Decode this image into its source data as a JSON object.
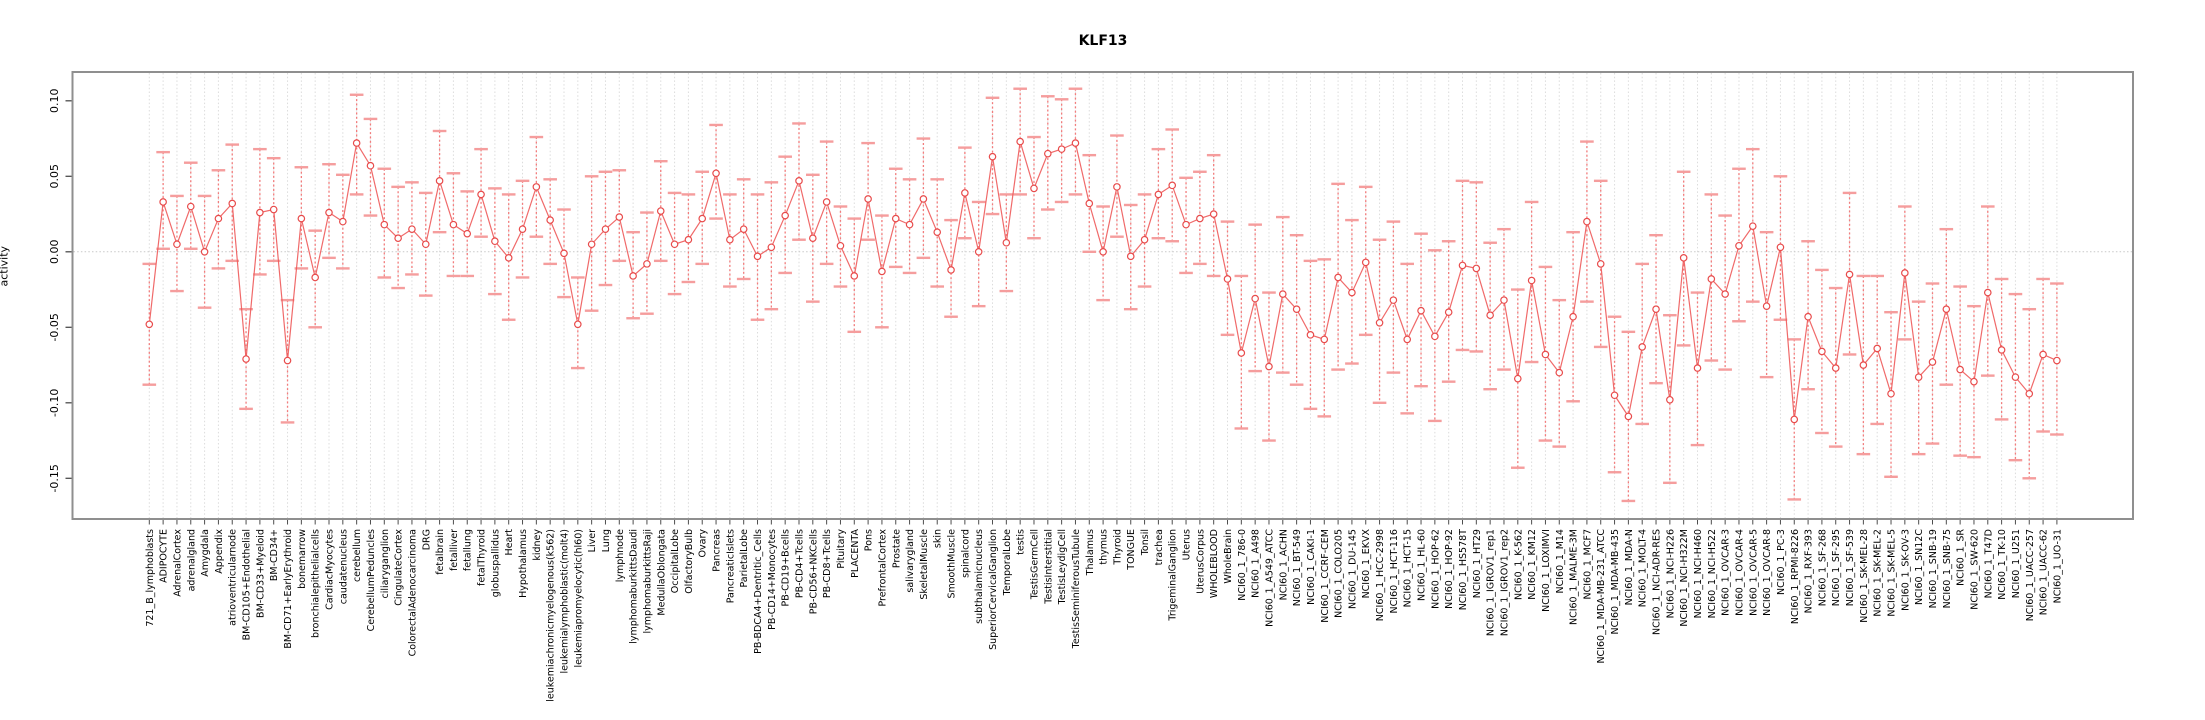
{
  "chart_data": {
    "type": "line",
    "variant": "points-with-error-bars",
    "title": "KLF13",
    "ylabel": "activity",
    "xlabel": "",
    "ylim": [
      -0.176,
      0.118
    ],
    "yticks": [
      0.1,
      0.05,
      0.0,
      -0.05,
      -0.1,
      -0.15
    ],
    "ytick_labels": [
      "0.10",
      "0.05",
      "0.00",
      "-0.05",
      "-0.10",
      "-0.15"
    ],
    "grid": {
      "vertical_per_category": true,
      "horizontal_zero_line": true,
      "style": "dotted-light-gray"
    },
    "legend_position": "none",
    "colors": {
      "series_line": "#ee5a5a",
      "point_ring": "#e84b4b",
      "error_stem": "#f37c7c",
      "error_cap": "#f59d9d",
      "gridline": "#dcdcdc",
      "zero_line": "#c9c9c9",
      "frame": "#8f8f8f",
      "tick": "#4d4d4d",
      "text": "#000000"
    },
    "categories": [
      "721_B_lymphoblasts",
      "ADIPOCYTE",
      "AdrenalCortex",
      "adrenalgland",
      "Amygdala",
      "Appendix",
      "atrioventricularnode",
      "BM-CD105+Endothelial",
      "BM-CD33+Myeloid",
      "BM-CD34+",
      "BM-CD71+EarlyErythroid",
      "bonemarrow",
      "bronchialepithelialcells",
      "CardiacMyocytes",
      "caudatenucleus",
      "cerebellum",
      "CerebellumPeduncles",
      "ciliaryganglion",
      "CingulateCortex",
      "ColorectalAdenocarcinoma",
      "DRG",
      "fetalbrain",
      "fetalliver",
      "fetallung",
      "fetalThyroid",
      "globuspallidus",
      "Heart",
      "Hypothalamus",
      "kidney",
      "leukemiachronicmyelogenous(k562)",
      "leukemialymphoblastic(molt4)",
      "leukemiapromyelocytic(hl60)",
      "Liver",
      "Lung",
      "lymphnode",
      "lymphomaburkittsDaudi",
      "lymphomaburkittsRaji",
      "MedullaOblongata",
      "OccipitalLobe",
      "OlfactoryBulb",
      "Ovary",
      "Pancreas",
      "PancreaticIslets",
      "ParietalLobe",
      "PB-BDCA4+Dentritic_Cells",
      "PB-CD14+Monocytes",
      "PB-CD19+Bcells",
      "PB-CD4+Tcells",
      "PB-CD56+NKCells",
      "PB-CD8+Tcells",
      "Pituitary",
      "PLACENTA",
      "Pons",
      "PrefrontalCortex",
      "Prostate",
      "salivarygland",
      "SkeletalMuscle",
      "skin",
      "SmoothMuscle",
      "spinalcord",
      "subthalamicnucleus",
      "SuperiorCervicalGanglion",
      "TemporalLobe",
      "testis",
      "TestisGermCell",
      "TestisInterstitial",
      "TestisLeydigCell",
      "TestisSeminiferousTubule",
      "Thalamus",
      "thymus",
      "Thyroid",
      "TONGUE",
      "Tonsil",
      "trachea",
      "TrigeminalGanglion",
      "Uterus",
      "UterusCorpus",
      "WHOLEBLOOD",
      "WholeBrain",
      "NCI60_1_786-0",
      "NCI60_1_A498",
      "NCI60_1_A549_ATCC",
      "NCI60_1_ACHN",
      "NCI60_1_BT-549",
      "NCI60_1_CAKI-1",
      "NCI60_1_CCRF-CEM",
      "NCI60_1_COLO205",
      "NCI60_1_DU-145",
      "NCI60_1_EKVX",
      "NCI60_1_HCC-2998",
      "NCI60_1_HCT-116",
      "NCI60_1_HCT-15",
      "NCI60_1_HL-60",
      "NCI60_1_HOP-62",
      "NCI60_1_HOP-92",
      "NCI60_1_HS578T",
      "NCI60_1_HT29",
      "NCI60_1_IGROV1_rep1",
      "NCI60_1_IGROV1_rep2",
      "NCI60_1_K-562",
      "NCI60_1_KM12",
      "NCI60_1_LOXIMVI",
      "NCI60_1_M14",
      "NCI60_1_MALME-3M",
      "NCI60_1_MCF7",
      "NCI60_1_MDA-MB-231_ATCC",
      "NCI60_1_MDA-MB-435",
      "NCI60_1_MDA-N",
      "NCI60_1_MOLT-4",
      "NCI60_1_NCI-ADR-RES",
      "NCI60_1_NCI-H226",
      "NCI60_1_NCI-H322M",
      "NCI60_1_NCI-H460",
      "NCI60_1_NCI-H522",
      "NCI60_1_OVCAR-3",
      "NCI60_1_OVCAR-4",
      "NCI60_1_OVCAR-5",
      "NCI60_1_OVCAR-8",
      "NCI60_1_PC-3",
      "NCI60_1_RPMI-8226",
      "NCI60_1_RXF-393",
      "NCI60_1_SF-268",
      "NCI60_1_SF-295",
      "NCI60_1_SF-539",
      "NCI60_1_SK-MEL-28",
      "NCI60_1_SK-MEL-2",
      "NCI60_1_SK-MEL-5",
      "NCI60_1_SK-OV-3",
      "NCI60_1_SN12C",
      "NCI60_1_SNB-19",
      "NCI60_1_SNB-75",
      "NCI60_1_SR",
      "NCI60_1_SW-620",
      "NCI60_1_T47D",
      "NCI60_1_TK-10",
      "NCI60_1_U251",
      "NCI60_1_UACC-257",
      "NCI60_1_UACC-62",
      "NCI60_1_UO-31"
    ],
    "values": [
      -0.048,
      0.033,
      0.005,
      0.03,
      0.0,
      0.022,
      0.032,
      -0.071,
      0.026,
      0.028,
      -0.072,
      0.022,
      -0.017,
      0.026,
      0.02,
      0.072,
      0.057,
      0.018,
      0.009,
      0.015,
      0.005,
      0.047,
      0.018,
      0.012,
      0.038,
      0.007,
      -0.004,
      0.015,
      0.043,
      0.021,
      -0.001,
      -0.048,
      0.005,
      0.015,
      0.023,
      -0.016,
      -0.008,
      0.027,
      0.005,
      0.008,
      0.022,
      0.052,
      0.008,
      0.015,
      -0.003,
      0.003,
      0.024,
      0.047,
      0.009,
      0.033,
      0.004,
      -0.016,
      0.035,
      -0.013,
      0.022,
      0.018,
      0.035,
      0.013,
      -0.012,
      0.039,
      0.0,
      0.063,
      0.006,
      0.073,
      0.042,
      0.065,
      0.068,
      0.072,
      0.032,
      0.0,
      0.043,
      -0.003,
      0.008,
      0.038,
      0.044,
      0.018,
      0.022,
      0.025,
      -0.018,
      -0.067,
      -0.031,
      -0.076,
      -0.028,
      -0.038,
      -0.055,
      -0.058,
      -0.017,
      -0.027,
      -0.007,
      -0.047,
      -0.032,
      -0.058,
      -0.039,
      -0.056,
      -0.04,
      -0.009,
      -0.011,
      -0.042,
      -0.032,
      -0.084,
      -0.019,
      -0.068,
      -0.08,
      -0.043,
      0.02,
      -0.008,
      -0.095,
      -0.109,
      -0.063,
      -0.038,
      -0.098,
      -0.004,
      -0.077,
      -0.018,
      -0.028,
      0.004,
      0.017,
      -0.036,
      0.003,
      -0.111,
      -0.043,
      -0.066,
      -0.077,
      -0.015,
      -0.075,
      -0.064,
      -0.094,
      -0.014,
      -0.083,
      -0.073,
      -0.038,
      -0.078,
      -0.086,
      -0.027,
      -0.065,
      -0.083,
      -0.094,
      -0.068,
      -0.072
    ],
    "lower": [
      -0.088,
      0.002,
      -0.026,
      0.002,
      -0.037,
      -0.011,
      -0.006,
      -0.104,
      -0.015,
      -0.006,
      -0.113,
      -0.011,
      -0.05,
      -0.004,
      -0.011,
      0.038,
      0.024,
      -0.017,
      -0.024,
      -0.015,
      -0.029,
      0.013,
      -0.016,
      -0.016,
      0.01,
      -0.028,
      -0.045,
      -0.017,
      0.01,
      -0.008,
      -0.03,
      -0.077,
      -0.039,
      -0.022,
      -0.006,
      -0.044,
      -0.041,
      -0.006,
      -0.028,
      -0.02,
      -0.008,
      0.022,
      -0.023,
      -0.018,
      -0.045,
      -0.038,
      -0.014,
      0.008,
      -0.033,
      -0.008,
      -0.023,
      -0.053,
      0.008,
      -0.05,
      -0.01,
      -0.014,
      -0.004,
      -0.023,
      -0.043,
      0.009,
      -0.036,
      0.025,
      -0.026,
      0.038,
      0.009,
      0.028,
      0.033,
      0.038,
      0.0,
      -0.032,
      0.01,
      -0.038,
      -0.023,
      0.009,
      0.007,
      -0.014,
      -0.008,
      -0.016,
      -0.055,
      -0.117,
      -0.079,
      -0.125,
      -0.08,
      -0.088,
      -0.104,
      -0.109,
      -0.078,
      -0.074,
      -0.055,
      -0.1,
      -0.08,
      -0.107,
      -0.089,
      -0.112,
      -0.086,
      -0.065,
      -0.066,
      -0.091,
      -0.078,
      -0.143,
      -0.073,
      -0.125,
      -0.129,
      -0.099,
      -0.033,
      -0.063,
      -0.146,
      -0.165,
      -0.114,
      -0.087,
      -0.153,
      -0.062,
      -0.128,
      -0.072,
      -0.078,
      -0.046,
      -0.033,
      -0.083,
      -0.045,
      -0.164,
      -0.091,
      -0.12,
      -0.129,
      -0.068,
      -0.134,
      -0.114,
      -0.149,
      -0.058,
      -0.134,
      -0.127,
      -0.088,
      -0.135,
      -0.136,
      -0.082,
      -0.111,
      -0.138,
      -0.15,
      -0.119,
      -0.121
    ],
    "upper": [
      -0.008,
      0.066,
      0.037,
      0.059,
      0.037,
      0.054,
      0.071,
      -0.038,
      0.068,
      0.062,
      -0.032,
      0.056,
      0.014,
      0.058,
      0.051,
      0.104,
      0.088,
      0.055,
      0.043,
      0.046,
      0.039,
      0.08,
      0.052,
      0.04,
      0.068,
      0.042,
      0.038,
      0.047,
      0.076,
      0.048,
      0.028,
      -0.017,
      0.05,
      0.053,
      0.054,
      0.013,
      0.026,
      0.06,
      0.039,
      0.038,
      0.053,
      0.084,
      0.038,
      0.048,
      0.038,
      0.046,
      0.063,
      0.085,
      0.051,
      0.073,
      0.03,
      0.022,
      0.072,
      0.024,
      0.055,
      0.048,
      0.075,
      0.048,
      0.021,
      0.069,
      0.033,
      0.102,
      0.038,
      0.108,
      0.076,
      0.103,
      0.101,
      0.108,
      0.064,
      0.03,
      0.077,
      0.031,
      0.038,
      0.068,
      0.081,
      0.049,
      0.053,
      0.064,
      0.02,
      -0.016,
      0.018,
      -0.027,
      0.023,
      0.011,
      -0.006,
      -0.005,
      0.045,
      0.021,
      0.043,
      0.008,
      0.02,
      -0.008,
      0.012,
      0.001,
      0.007,
      0.047,
      0.046,
      0.006,
      0.015,
      -0.025,
      0.033,
      -0.01,
      -0.032,
      0.013,
      0.073,
      0.047,
      -0.043,
      -0.053,
      -0.008,
      0.011,
      -0.042,
      0.053,
      -0.027,
      0.038,
      0.024,
      0.055,
      0.068,
      0.013,
      0.05,
      -0.058,
      0.007,
      -0.012,
      -0.024,
      0.039,
      -0.016,
      -0.016,
      -0.04,
      0.03,
      -0.033,
      -0.021,
      0.015,
      -0.023,
      -0.036,
      0.03,
      -0.018,
      -0.028,
      -0.038,
      -0.018,
      -0.021
    ]
  }
}
